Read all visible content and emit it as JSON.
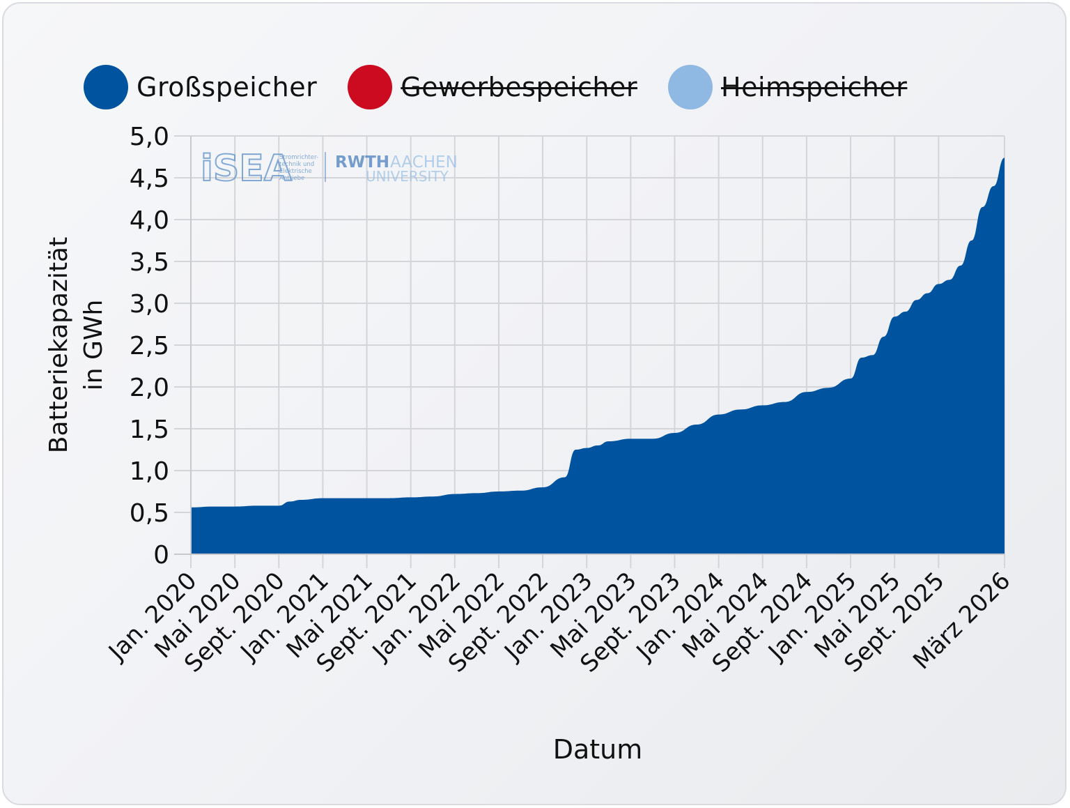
{
  "legend": {
    "items": [
      {
        "label": "Großspeicher",
        "color": "#00539f",
        "active": true
      },
      {
        "label": "Gewerbespeicher",
        "color": "#cc0a20",
        "active": false
      },
      {
        "label": "Heimspeicher",
        "color": "#8fb8e3",
        "active": false
      }
    ]
  },
  "watermark": {
    "isea": "iSEA",
    "isea_sub": [
      "Stromrichter-",
      "technik und",
      "Elektrische",
      "Antriebe"
    ],
    "rwth_1": "RWTH",
    "rwth_2": "AACHEN",
    "rwth_3": "UNIVERSITY"
  },
  "chart_data": {
    "type": "area",
    "title": "",
    "xlabel": "Datum",
    "ylabel": "Batteriekapazität in GWh",
    "ylabel_lines": [
      "Batteriekapazität",
      "in GWh"
    ],
    "ylim": [
      0,
      5.0
    ],
    "yticks": [
      "0",
      "0,5",
      "1,0",
      "1,5",
      "2,0",
      "2,5",
      "3,0",
      "3,5",
      "4,0",
      "4,5",
      "5,0"
    ],
    "xticks": [
      "Jan. 2020",
      "Mai 2020",
      "Sept. 2020",
      "Jan. 2021",
      "Mai 2021",
      "Sept. 2021",
      "Jan. 2022",
      "Mai 2022",
      "Sept. 2022",
      "Jan. 2023",
      "Mai 2023",
      "Sept. 2023",
      "Jan. 2024",
      "Mai 2024",
      "Sept. 2024",
      "Jan. 2025",
      "Mai 2025",
      "Sept. 2025",
      "März 2026"
    ],
    "grid": true,
    "legend_position": "top",
    "series": [
      {
        "name": "Großspeicher",
        "color": "#00539f",
        "x_months_from_jan2020": [
          0,
          2,
          4,
          6,
          8,
          9,
          10,
          12,
          14,
          16,
          18,
          20,
          22,
          24,
          26,
          28,
          30,
          32,
          34,
          35,
          36,
          37,
          38,
          40,
          42,
          44,
          46,
          48,
          50,
          52,
          54,
          56,
          58,
          60,
          61,
          62,
          63,
          64,
          65,
          66,
          67,
          68,
          69,
          70,
          71,
          72,
          73,
          74
        ],
        "values": [
          0.56,
          0.57,
          0.57,
          0.58,
          0.58,
          0.63,
          0.65,
          0.67,
          0.67,
          0.67,
          0.67,
          0.68,
          0.69,
          0.72,
          0.73,
          0.75,
          0.76,
          0.8,
          0.92,
          1.25,
          1.27,
          1.3,
          1.35,
          1.38,
          1.38,
          1.45,
          1.55,
          1.67,
          1.73,
          1.78,
          1.82,
          1.94,
          1.99,
          2.1,
          2.35,
          2.38,
          2.6,
          2.84,
          2.9,
          3.04,
          3.12,
          3.23,
          3.28,
          3.45,
          3.75,
          4.15,
          4.4,
          4.74
        ]
      },
      {
        "name": "Gewerbespeicher",
        "color": "#cc0a20",
        "hidden": true,
        "values": []
      },
      {
        "name": "Heimspeicher",
        "color": "#8fb8e3",
        "hidden": true,
        "values": []
      }
    ]
  }
}
